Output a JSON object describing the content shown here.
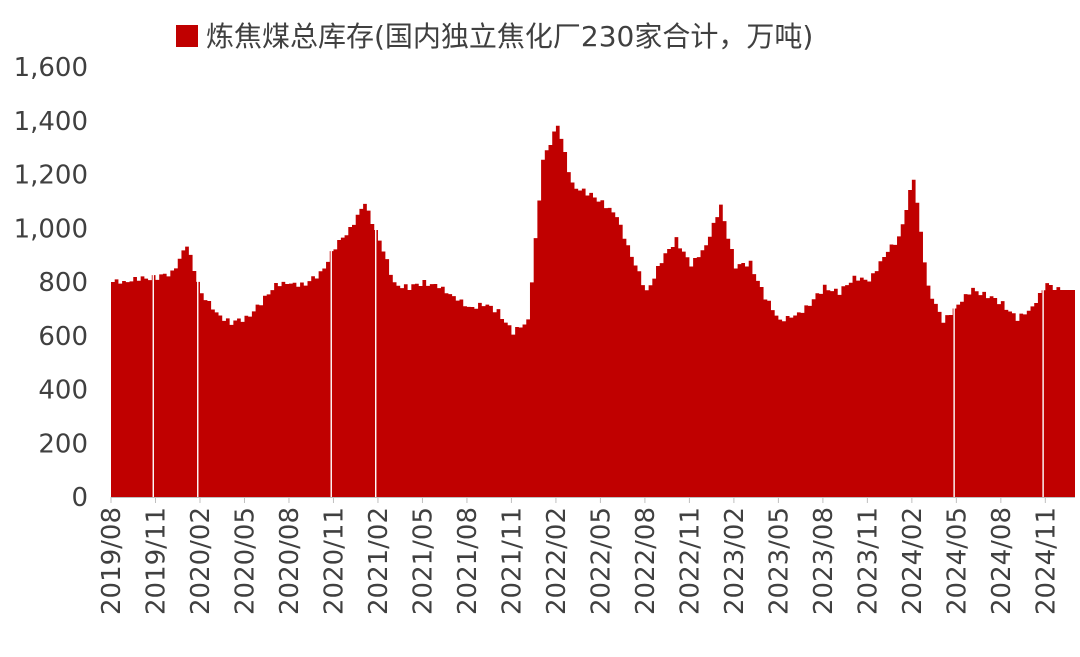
{
  "chart_data": {
    "type": "area",
    "title": "",
    "xlabel": "",
    "ylabel": "",
    "ylim": [
      0,
      1600
    ],
    "y_ticks": [
      "0",
      "200",
      "400",
      "600",
      "800",
      "1,000",
      "1,200",
      "1,400",
      "1,600"
    ],
    "y_tick_values": [
      0,
      200,
      400,
      600,
      800,
      1000,
      1200,
      1400,
      1600
    ],
    "x_tick_labels": [
      "2019/08",
      "2019/11",
      "2020/02",
      "2020/05",
      "2020/08",
      "2020/11",
      "2021/02",
      "2021/05",
      "2021/08",
      "2021/11",
      "2022/02",
      "2022/05",
      "2022/08",
      "2022/11",
      "2023/02",
      "2023/05",
      "2023/08",
      "2023/11",
      "2024/02",
      "2024/05",
      "2024/08",
      "2024/11"
    ],
    "x_range": [
      "2019/08",
      "2024/12"
    ],
    "grid": false,
    "legend_position": "top-center",
    "series": [
      {
        "name": "炼焦煤总库存(国内独立焦化厂230家合计，万吨)",
        "color": "#C00000",
        "points": [
          [
            "2019/08",
            800
          ],
          [
            "2019/09",
            805
          ],
          [
            "2019/10",
            812
          ],
          [
            "2019/11",
            818
          ],
          [
            "2019/12",
            835
          ],
          [
            "2020/01",
            935
          ],
          [
            "2020/02",
            760
          ],
          [
            "2020/03",
            680
          ],
          [
            "2020/04",
            650
          ],
          [
            "2020/05",
            665
          ],
          [
            "2020/06",
            720
          ],
          [
            "2020/07",
            795
          ],
          [
            "2020/08",
            790
          ],
          [
            "2020/09",
            795
          ],
          [
            "2020/10",
            830
          ],
          [
            "2020/11",
            930
          ],
          [
            "2020/12",
            1000
          ],
          [
            "2021/01",
            1090
          ],
          [
            "2021/02",
            960
          ],
          [
            "2021/03",
            790
          ],
          [
            "2021/04",
            780
          ],
          [
            "2021/05",
            800
          ],
          [
            "2021/06",
            780
          ],
          [
            "2021/07",
            750
          ],
          [
            "2021/08",
            700
          ],
          [
            "2021/09",
            720
          ],
          [
            "2021/10",
            690
          ],
          [
            "2021/11",
            610
          ],
          [
            "2021/12",
            660
          ],
          [
            "2022/01",
            1250
          ],
          [
            "2022/02",
            1390
          ],
          [
            "2022/03",
            1160
          ],
          [
            "2022/04",
            1130
          ],
          [
            "2022/05",
            1100
          ],
          [
            "2022/06",
            1040
          ],
          [
            "2022/07",
            900
          ],
          [
            "2022/08",
            760
          ],
          [
            "2022/09",
            880
          ],
          [
            "2022/10",
            960
          ],
          [
            "2022/11",
            860
          ],
          [
            "2022/12",
            940
          ],
          [
            "2023/01",
            1080
          ],
          [
            "2023/02",
            860
          ],
          [
            "2023/03",
            870
          ],
          [
            "2023/04",
            740
          ],
          [
            "2023/05",
            660
          ],
          [
            "2023/06",
            670
          ],
          [
            "2023/07",
            720
          ],
          [
            "2023/08",
            780
          ],
          [
            "2023/09",
            760
          ],
          [
            "2023/10",
            820
          ],
          [
            "2023/11",
            800
          ],
          [
            "2023/12",
            900
          ],
          [
            "2024/01",
            960
          ],
          [
            "2024/02",
            1190
          ],
          [
            "2024/03",
            780
          ],
          [
            "2024/04",
            650
          ],
          [
            "2024/05",
            720
          ],
          [
            "2024/06",
            770
          ],
          [
            "2024/07",
            750
          ],
          [
            "2024/08",
            720
          ],
          [
            "2024/09",
            660
          ],
          [
            "2024/10",
            710
          ],
          [
            "2024/11",
            790
          ],
          [
            "2024/12",
            770
          ]
        ]
      }
    ]
  }
}
